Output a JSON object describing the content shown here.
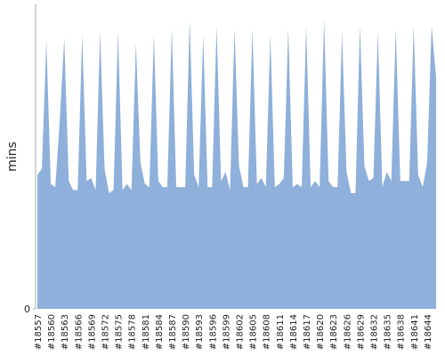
{
  "chart_data": {
    "type": "area",
    "y_label": "mins",
    "color": "#8eb0da",
    "categories": [
      "#18557",
      null,
      null,
      "#18560",
      null,
      null,
      "#18563",
      null,
      null,
      "#18566",
      null,
      null,
      "#18569",
      null,
      null,
      "#18572",
      null,
      null,
      "#18575",
      null,
      null,
      "#18578",
      null,
      null,
      "#18581",
      null,
      null,
      "#18584",
      null,
      null,
      "#18587",
      null,
      null,
      "#18590",
      null,
      null,
      "#18593",
      null,
      null,
      "#18596",
      null,
      null,
      "#18599",
      null,
      null,
      "#18602",
      null,
      null,
      "#18605",
      null,
      null,
      "#18608",
      null,
      null,
      "#18611",
      null,
      null,
      "#18614",
      null,
      null,
      "#18617",
      null,
      null,
      "#18620",
      null,
      null,
      "#18623",
      null,
      null,
      "#18626",
      null,
      null,
      "#18629",
      null,
      null,
      "#18632",
      null,
      null,
      "#18635",
      null,
      null,
      "#18638",
      null,
      null,
      "#18641",
      null,
      null,
      "#18644",
      null,
      null
    ],
    "values": [
      44,
      46,
      88,
      41,
      40,
      62,
      89,
      42,
      39,
      39,
      90,
      42,
      43,
      39,
      91,
      46,
      38,
      39,
      91,
      39,
      41,
      39,
      87,
      48,
      41,
      40,
      90,
      42,
      40,
      40,
      92,
      40,
      40,
      40,
      95,
      44,
      40,
      90,
      40,
      40,
      93,
      42,
      45,
      39,
      92,
      47,
      40,
      40,
      92,
      41,
      43,
      40,
      90,
      40,
      41,
      43,
      92,
      40,
      41,
      40,
      93,
      40,
      42,
      40,
      95,
      42,
      40,
      40,
      91,
      45,
      38,
      38,
      93,
      47,
      42,
      43,
      91,
      40,
      45,
      42,
      92,
      42,
      42,
      42,
      93,
      44,
      40,
      48,
      93,
      76
    ],
    "ylim": [
      0,
      100
    ],
    "yticks": [
      0
    ]
  }
}
